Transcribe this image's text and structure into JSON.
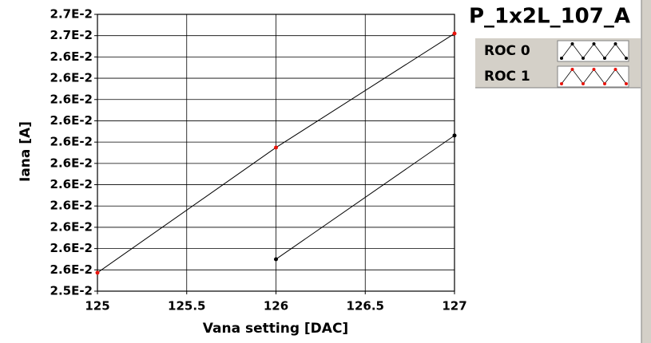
{
  "chart_data": {
    "type": "line",
    "title": "P_1x2L_107_A",
    "x_label": "Vana setting [DAC]",
    "y_label": "Iana [A]",
    "x": [
      125,
      126,
      127
    ],
    "series": [
      {
        "name": "ROC 0",
        "color": "#000000",
        "values": [
          null,
          0.025625,
          0.026148
        ]
      },
      {
        "name": "ROC 1",
        "color": "#e8140c",
        "values": [
          0.025568,
          0.026097,
          0.026579
        ]
      }
    ],
    "xlim": [
      125,
      127
    ],
    "xticks": [
      125,
      125.5,
      126,
      126.5,
      127
    ],
    "ylim": [
      0.02549,
      0.02666
    ],
    "yticks": [
      {
        "value": 0.02549,
        "label": "2.5E-2"
      },
      {
        "value": 0.02558,
        "label": "2.6E-2"
      },
      {
        "value": 0.02567,
        "label": "2.6E-2"
      },
      {
        "value": 0.02576,
        "label": "2.6E-2"
      },
      {
        "value": 0.02585,
        "label": "2.6E-2"
      },
      {
        "value": 0.02594,
        "label": "2.6E-2"
      },
      {
        "value": 0.02603,
        "label": "2.6E-2"
      },
      {
        "value": 0.02612,
        "label": "2.6E-2"
      },
      {
        "value": 0.02621,
        "label": "2.6E-2"
      },
      {
        "value": 0.0263,
        "label": "2.6E-2"
      },
      {
        "value": 0.02639,
        "label": "2.6E-2"
      },
      {
        "value": 0.02648,
        "label": "2.6E-2"
      },
      {
        "value": 0.02657,
        "label": "2.7E-2"
      },
      {
        "value": 0.02666,
        "label": "2.7E-2"
      }
    ],
    "grid": true
  }
}
